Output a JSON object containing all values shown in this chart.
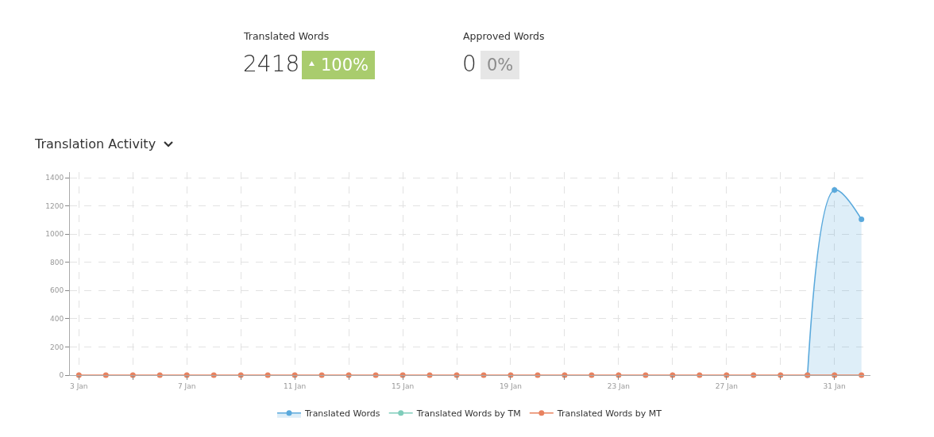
{
  "chart_data": {
    "type": "line",
    "title": "Translation Activity",
    "annotations": [
      "Translated Words",
      "2418",
      "100%",
      "Approved Words",
      "0",
      "0%"
    ],
    "x": [
      "--01-03",
      "--01-04",
      "--01-05",
      "--01-06",
      "--01-07",
      "--01-08",
      "--01-09",
      "--01-10",
      "--01-11",
      "--01-12",
      "--01-13",
      "--01-14",
      "--01-15",
      "--01-16",
      "--01-17",
      "--01-18",
      "--01-19",
      "--01-20",
      "--01-21",
      "--01-22",
      "--01-23",
      "--01-24",
      "--01-25",
      "--01-26",
      "--01-27",
      "--01-28",
      "--01-29",
      "--01-30",
      "--01-31",
      "--02-01"
    ],
    "series": [
      {
        "name": "Translated Words",
        "type": "area",
        "color": "#5aa9dc",
        "values": [
          null,
          null,
          null,
          null,
          null,
          null,
          null,
          null,
          null,
          null,
          null,
          null,
          null,
          null,
          null,
          null,
          null,
          null,
          null,
          null,
          null,
          null,
          null,
          null,
          null,
          null,
          null,
          0,
          1313,
          1105
        ]
      },
      {
        "name": "Translated Words by TM",
        "color": "#7fcdbb",
        "values": [
          null,
          null,
          null,
          null,
          null,
          null,
          null,
          null,
          null,
          null,
          null,
          null,
          null,
          null,
          null,
          null,
          null,
          null,
          null,
          null,
          null,
          null,
          null,
          null,
          null,
          null,
          null,
          null,
          null,
          null
        ]
      },
      {
        "name": "Translated Words by MT",
        "color": "#e8825f",
        "values": [
          0,
          0,
          0,
          0,
          0,
          0,
          0,
          0,
          0,
          0,
          0,
          0,
          0,
          0,
          0,
          0,
          0,
          0,
          0,
          0,
          0,
          0,
          0,
          0,
          0,
          0,
          0,
          0,
          0,
          0
        ]
      }
    ],
    "xlim": [
      "--01-02T16:00",
      "--02-01T08:00"
    ],
    "xticks": [
      {
        "value": "--01-03",
        "label": "3 Jan"
      },
      {
        "value": "--01-05",
        "label": null
      },
      {
        "value": "--01-07",
        "label": "7 Jan"
      },
      {
        "value": "--01-09",
        "label": null
      },
      {
        "value": "--01-11",
        "label": "11 Jan"
      },
      {
        "value": "--01-13",
        "label": null
      },
      {
        "value": "--01-15",
        "label": "15 Jan"
      },
      {
        "value": "--01-17",
        "label": null
      },
      {
        "value": "--01-19",
        "label": "19 Jan"
      },
      {
        "value": "--01-21",
        "label": null
      },
      {
        "value": "--01-23",
        "label": "23 Jan"
      },
      {
        "value": "--01-25",
        "label": null
      },
      {
        "value": "--01-27",
        "label": "27 Jan"
      },
      {
        "value": "--01-29",
        "label": null
      },
      {
        "value": "--01-31",
        "label": "31 Jan"
      }
    ],
    "ylim": [
      0,
      1440
    ],
    "yticks": [
      0,
      200,
      400,
      600,
      800,
      1000,
      1200,
      1400
    ],
    "grid": true,
    "legend": "bottom",
    "marker": "circle",
    "line_style": "solid"
  }
}
